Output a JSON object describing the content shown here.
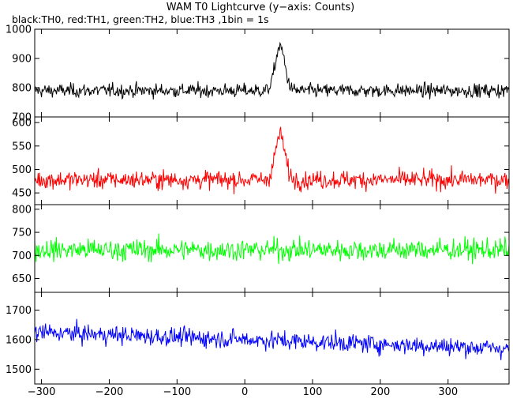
{
  "chart_data": {
    "type": "line",
    "title": "WAM T0 Lightcurve (y−axis: Counts)",
    "subtitle": "black:TH0, red:TH1, green:TH2, blue:TH3 ,1bin = 1s",
    "xlim": [
      -310,
      390
    ],
    "x_ticks": [
      -300,
      -200,
      -100,
      0,
      100,
      200,
      300
    ],
    "x_tick_labels": [
      "−300",
      "−200",
      "−100",
      "0",
      "100",
      "200",
      "300"
    ],
    "panels": [
      {
        "series": "TH0",
        "color": "#000000",
        "ylim": [
          700,
          1000
        ],
        "y_ticks": [
          700,
          800,
          900,
          1000
        ],
        "y_tick_labels": [
          "700",
          "800",
          "900",
          "1000"
        ],
        "baseline": 790,
        "noise_amplitude": 30,
        "peak": {
          "x": 52,
          "height": 150,
          "width": 10
        }
      },
      {
        "series": "TH1",
        "color": "#ff0000",
        "ylim": [
          425,
          612
        ],
        "y_ticks": [
          450,
          500,
          550,
          600
        ],
        "y_tick_labels": [
          "450",
          "500",
          "550",
          "600"
        ],
        "baseline": 478,
        "noise_amplitude": 25,
        "peak": {
          "x": 52,
          "height": 95,
          "width": 10
        }
      },
      {
        "series": "TH2",
        "color": "#00ff00",
        "ylim": [
          620,
          810
        ],
        "y_ticks": [
          650,
          700,
          750,
          800
        ],
        "y_tick_labels": [
          "650",
          "700",
          "750",
          "800"
        ],
        "baseline": 712,
        "noise_amplitude": 30,
        "peak": null
      },
      {
        "series": "TH3",
        "color": "#0000ff",
        "ylim": [
          1450,
          1760
        ],
        "y_ticks": [
          1500,
          1600,
          1700
        ],
        "y_tick_labels": [
          "1500",
          "1600",
          "1700"
        ],
        "baseline": 1625,
        "end_value": 1570,
        "noise_amplitude": 40,
        "peak": null
      }
    ],
    "grid": false,
    "legend": "none"
  }
}
